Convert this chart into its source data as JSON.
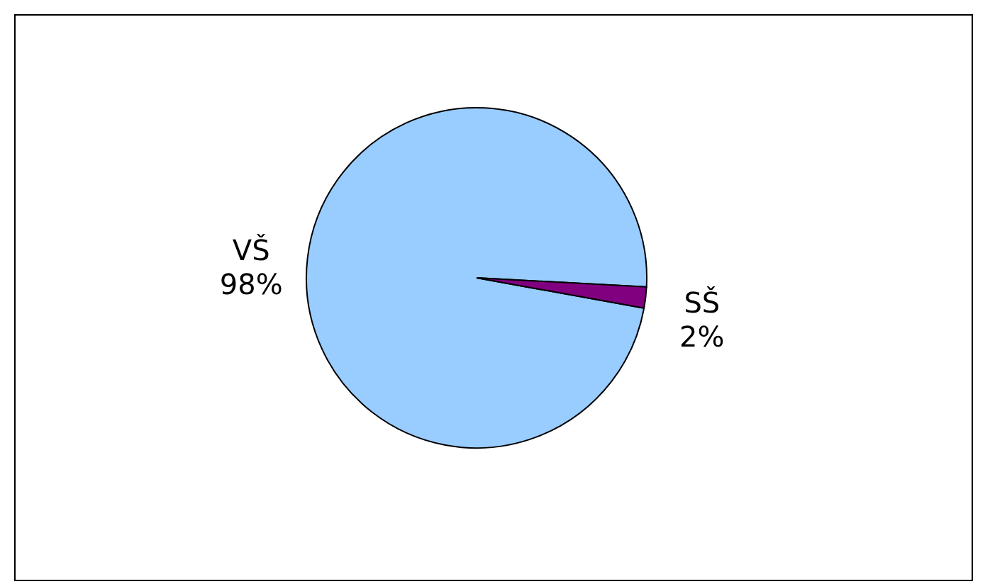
{
  "chart_data": {
    "type": "pie",
    "categories": [
      "VŠ",
      "SŠ"
    ],
    "values": [
      98,
      2
    ],
    "colors": [
      "#99ccff",
      "#800080"
    ],
    "value_labels": [
      "98%",
      "2%"
    ],
    "legend": false
  }
}
